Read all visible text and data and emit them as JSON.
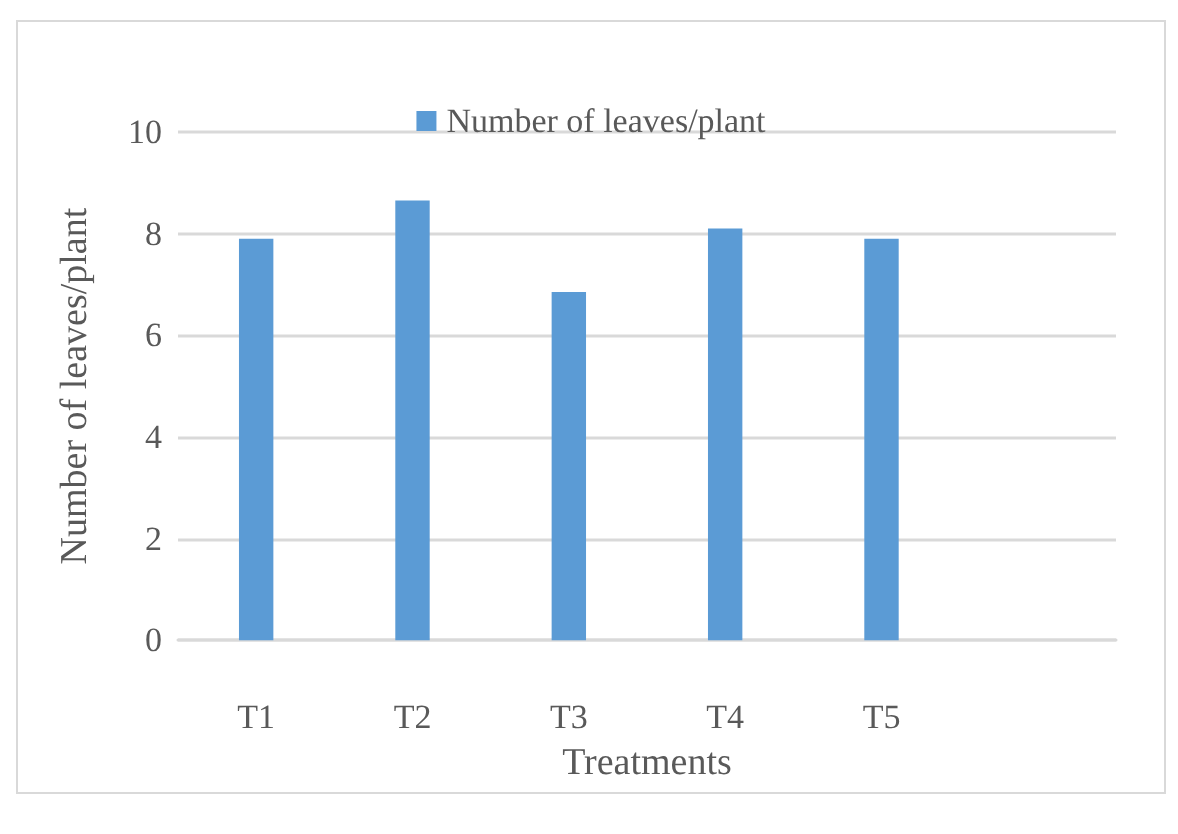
{
  "chart_data": {
    "type": "bar",
    "xlabel": "Treatments",
    "ylabel": "Number of leaves/plant",
    "categories": [
      "T1",
      "T2",
      "T3",
      "T4",
      "T5",
      null
    ],
    "series": [
      {
        "name": "Number of leaves/plant",
        "color": "#5b9bd5",
        "values": [
          7.9,
          8.65,
          6.85,
          8.1,
          7.9,
          null
        ]
      }
    ],
    "ylim": [
      0,
      10
    ],
    "yticks": [
      0,
      2,
      4,
      6,
      8,
      10
    ],
    "grid": "y",
    "legend": "top"
  }
}
